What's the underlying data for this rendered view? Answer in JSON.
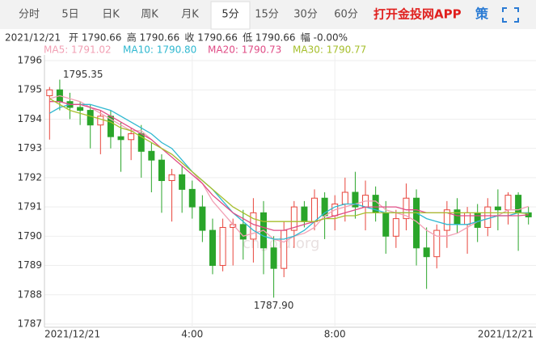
{
  "tabs": [
    "分时",
    "5日",
    "日K",
    "周K",
    "月K",
    "5分",
    "15分",
    "30分",
    "60分"
  ],
  "active_tab": 5,
  "promo": "打开金投网APP",
  "strategy": "策",
  "info": [
    "2021/12/21",
    "开 1790.66",
    "高 1790.66",
    "收 1790.66",
    "低 1790.66",
    "幅 -0.00%"
  ],
  "chart_data": {
    "type": "candlestick",
    "categories": [
      "2021/12/21",
      null,
      null,
      null,
      null,
      null,
      null,
      null,
      null,
      null,
      null,
      null,
      null,
      null,
      "4:00",
      null,
      null,
      null,
      null,
      null,
      null,
      null,
      null,
      null,
      null,
      null,
      null,
      null,
      "8:00",
      null,
      null,
      null,
      null,
      null,
      null,
      null,
      null,
      null,
      null,
      null,
      null,
      null,
      null,
      null,
      null,
      null,
      null,
      "2021/12/21"
    ],
    "open": [
      1794.8,
      1795.0,
      1794.6,
      1794.4,
      1794.3,
      1793.8,
      1794.1,
      1793.4,
      1793.3,
      1793.5,
      1792.9,
      1792.6,
      1791.9,
      1792.1,
      1791.6,
      1791.0,
      1790.2,
      1789.0,
      1790.3,
      1790.4,
      1789.9,
      1790.8,
      1789.6,
      1788.9,
      1790.2,
      1791.0,
      1790.5,
      1791.3,
      1790.7,
      1791.1,
      1791.5,
      1791.0,
      1791.4,
      1790.8,
      1790.0,
      1790.6,
      1791.3,
      1789.6,
      1789.3,
      1790.2,
      1790.9,
      1790.4,
      1790.8,
      1790.3,
      1791.0,
      1790.9,
      1791.4,
      1790.8
    ],
    "high": [
      1795.1,
      1795.35,
      1794.9,
      1794.6,
      1794.5,
      1794.3,
      1794.3,
      1793.9,
      1793.7,
      1793.8,
      1793.2,
      1792.8,
      1792.3,
      1792.4,
      1791.9,
      1791.4,
      1790.6,
      1790.6,
      1790.6,
      1790.9,
      1791.3,
      1791.2,
      1790.0,
      1790.5,
      1791.2,
      1791.2,
      1791.6,
      1791.5,
      1791.4,
      1792.0,
      1792.2,
      1791.9,
      1791.7,
      1791.2,
      1790.9,
      1791.8,
      1791.6,
      1790.3,
      1790.4,
      1791.2,
      1791.3,
      1791.0,
      1791.1,
      1791.3,
      1791.6,
      1791.5,
      1791.5,
      1791.0
    ],
    "low": [
      1793.3,
      1794.3,
      1794.0,
      1793.8,
      1793.0,
      1792.8,
      1793.0,
      1792.2,
      1792.6,
      1792.0,
      1791.5,
      1790.8,
      1790.5,
      1790.8,
      1790.6,
      1789.8,
      1788.7,
      1788.8,
      1789.0,
      1789.2,
      1789.1,
      1788.7,
      1787.9,
      1788.6,
      1789.6,
      1790.3,
      1790.2,
      1789.9,
      1790.2,
      1790.5,
      1790.6,
      1790.2,
      1790.5,
      1789.4,
      1789.6,
      1790.2,
      1789.0,
      1788.2,
      1788.9,
      1789.6,
      1790.1,
      1789.4,
      1789.8,
      1790.0,
      1790.2,
      1790.4,
      1789.5,
      1790.4
    ],
    "close": [
      1795.0,
      1794.6,
      1794.4,
      1794.3,
      1793.8,
      1794.1,
      1793.4,
      1793.3,
      1793.5,
      1792.9,
      1792.6,
      1791.9,
      1792.1,
      1791.6,
      1791.0,
      1790.2,
      1789.0,
      1790.3,
      1790.4,
      1789.9,
      1790.8,
      1789.6,
      1788.9,
      1790.2,
      1791.0,
      1790.5,
      1791.3,
      1790.7,
      1791.1,
      1791.5,
      1791.0,
      1791.4,
      1790.8,
      1790.0,
      1790.6,
      1791.3,
      1789.6,
      1789.3,
      1790.2,
      1790.9,
      1790.4,
      1790.8,
      1790.3,
      1791.0,
      1790.9,
      1791.4,
      1790.8,
      1790.66
    ],
    "up_color": "#e8453c",
    "down_color": "#2aa52a",
    "series": [
      {
        "name": "MA5: 1791.02",
        "color": "#f2a0b4",
        "values": [
          1794.7,
          1794.8,
          1794.7,
          1794.6,
          1794.4,
          1794.2,
          1794.0,
          1793.8,
          1793.6,
          1793.6,
          1793.3,
          1793.0,
          1792.8,
          1792.5,
          1792.2,
          1791.8,
          1791.2,
          1790.8,
          1790.4,
          1790.0,
          1790.1,
          1790.2,
          1789.9,
          1789.8,
          1790.0,
          1790.1,
          1790.3,
          1790.7,
          1790.9,
          1791.0,
          1791.1,
          1791.2,
          1791.2,
          1790.9,
          1790.8,
          1790.7,
          1790.5,
          1790.2,
          1790.0,
          1790.0,
          1790.1,
          1790.3,
          1790.5,
          1790.6,
          1790.7,
          1790.9,
          1790.9,
          1791.02
        ]
      },
      {
        "name": "MA10: 1790.80",
        "color": "#2fb8d0",
        "values": [
          1794.2,
          1794.4,
          1794.5,
          1794.5,
          1794.5,
          1794.4,
          1794.3,
          1794.1,
          1793.9,
          1793.7,
          1793.5,
          1793.2,
          1793.0,
          1792.6,
          1792.2,
          1791.9,
          1791.6,
          1791.2,
          1790.8,
          1790.5,
          1790.2,
          1790.0,
          1789.9,
          1789.9,
          1790.0,
          1790.2,
          1790.5,
          1790.8,
          1791.0,
          1791.1,
          1791.1,
          1791.0,
          1790.9,
          1790.8,
          1790.8,
          1790.8,
          1790.8,
          1790.6,
          1790.5,
          1790.4,
          1790.4,
          1790.4,
          1790.5,
          1790.6,
          1790.7,
          1790.7,
          1790.8,
          1790.8
        ]
      },
      {
        "name": "MA20: 1790.73",
        "color": "#e04c86",
        "values": [
          1794.6,
          1794.6,
          1794.5,
          1794.5,
          1794.4,
          1794.3,
          1794.1,
          1793.9,
          1793.7,
          1793.5,
          1793.3,
          1793.0,
          1792.7,
          1792.4,
          1792.1,
          1791.8,
          1791.4,
          1791.1,
          1790.8,
          1790.6,
          1790.4,
          1790.3,
          1790.2,
          1790.2,
          1790.3,
          1790.4,
          1790.5,
          1790.6,
          1790.7,
          1790.8,
          1790.9,
          1791.0,
          1791.0,
          1791.0,
          1791.0,
          1790.9,
          1790.9,
          1790.8,
          1790.8,
          1790.8,
          1790.7,
          1790.7,
          1790.7,
          1790.7,
          1790.7,
          1790.7,
          1790.7,
          1790.73
        ]
      },
      {
        "name": "MA30: 1790.77",
        "color": "#a6bf2c",
        "values": [
          1794.7,
          1794.5,
          1794.3,
          1794.2,
          1794.1,
          1794.0,
          1793.9,
          1793.7,
          1793.6,
          1793.4,
          1793.2,
          1793.0,
          1792.8,
          1792.5,
          1792.2,
          1791.9,
          1791.6,
          1791.3,
          1791.0,
          1790.8,
          1790.6,
          1790.5,
          1790.5,
          1790.5,
          1790.5,
          1790.5,
          1790.5,
          1790.6,
          1790.6,
          1790.7,
          1790.7,
          1790.8,
          1790.8,
          1790.8,
          1790.8,
          1790.8,
          1790.8,
          1790.8,
          1790.8,
          1790.8,
          1790.8,
          1790.8,
          1790.8,
          1790.8,
          1790.8,
          1790.8,
          1790.8,
          1790.77
        ]
      }
    ],
    "max_label": "1795.35",
    "min_label": "1787.90",
    "ylim": [
      1787,
      1796
    ],
    "yticks": [
      1787,
      1788,
      1789,
      1790,
      1791,
      1792,
      1793,
      1794,
      1795,
      1796
    ],
    "grid": true,
    "watermark": "cngold.org"
  }
}
